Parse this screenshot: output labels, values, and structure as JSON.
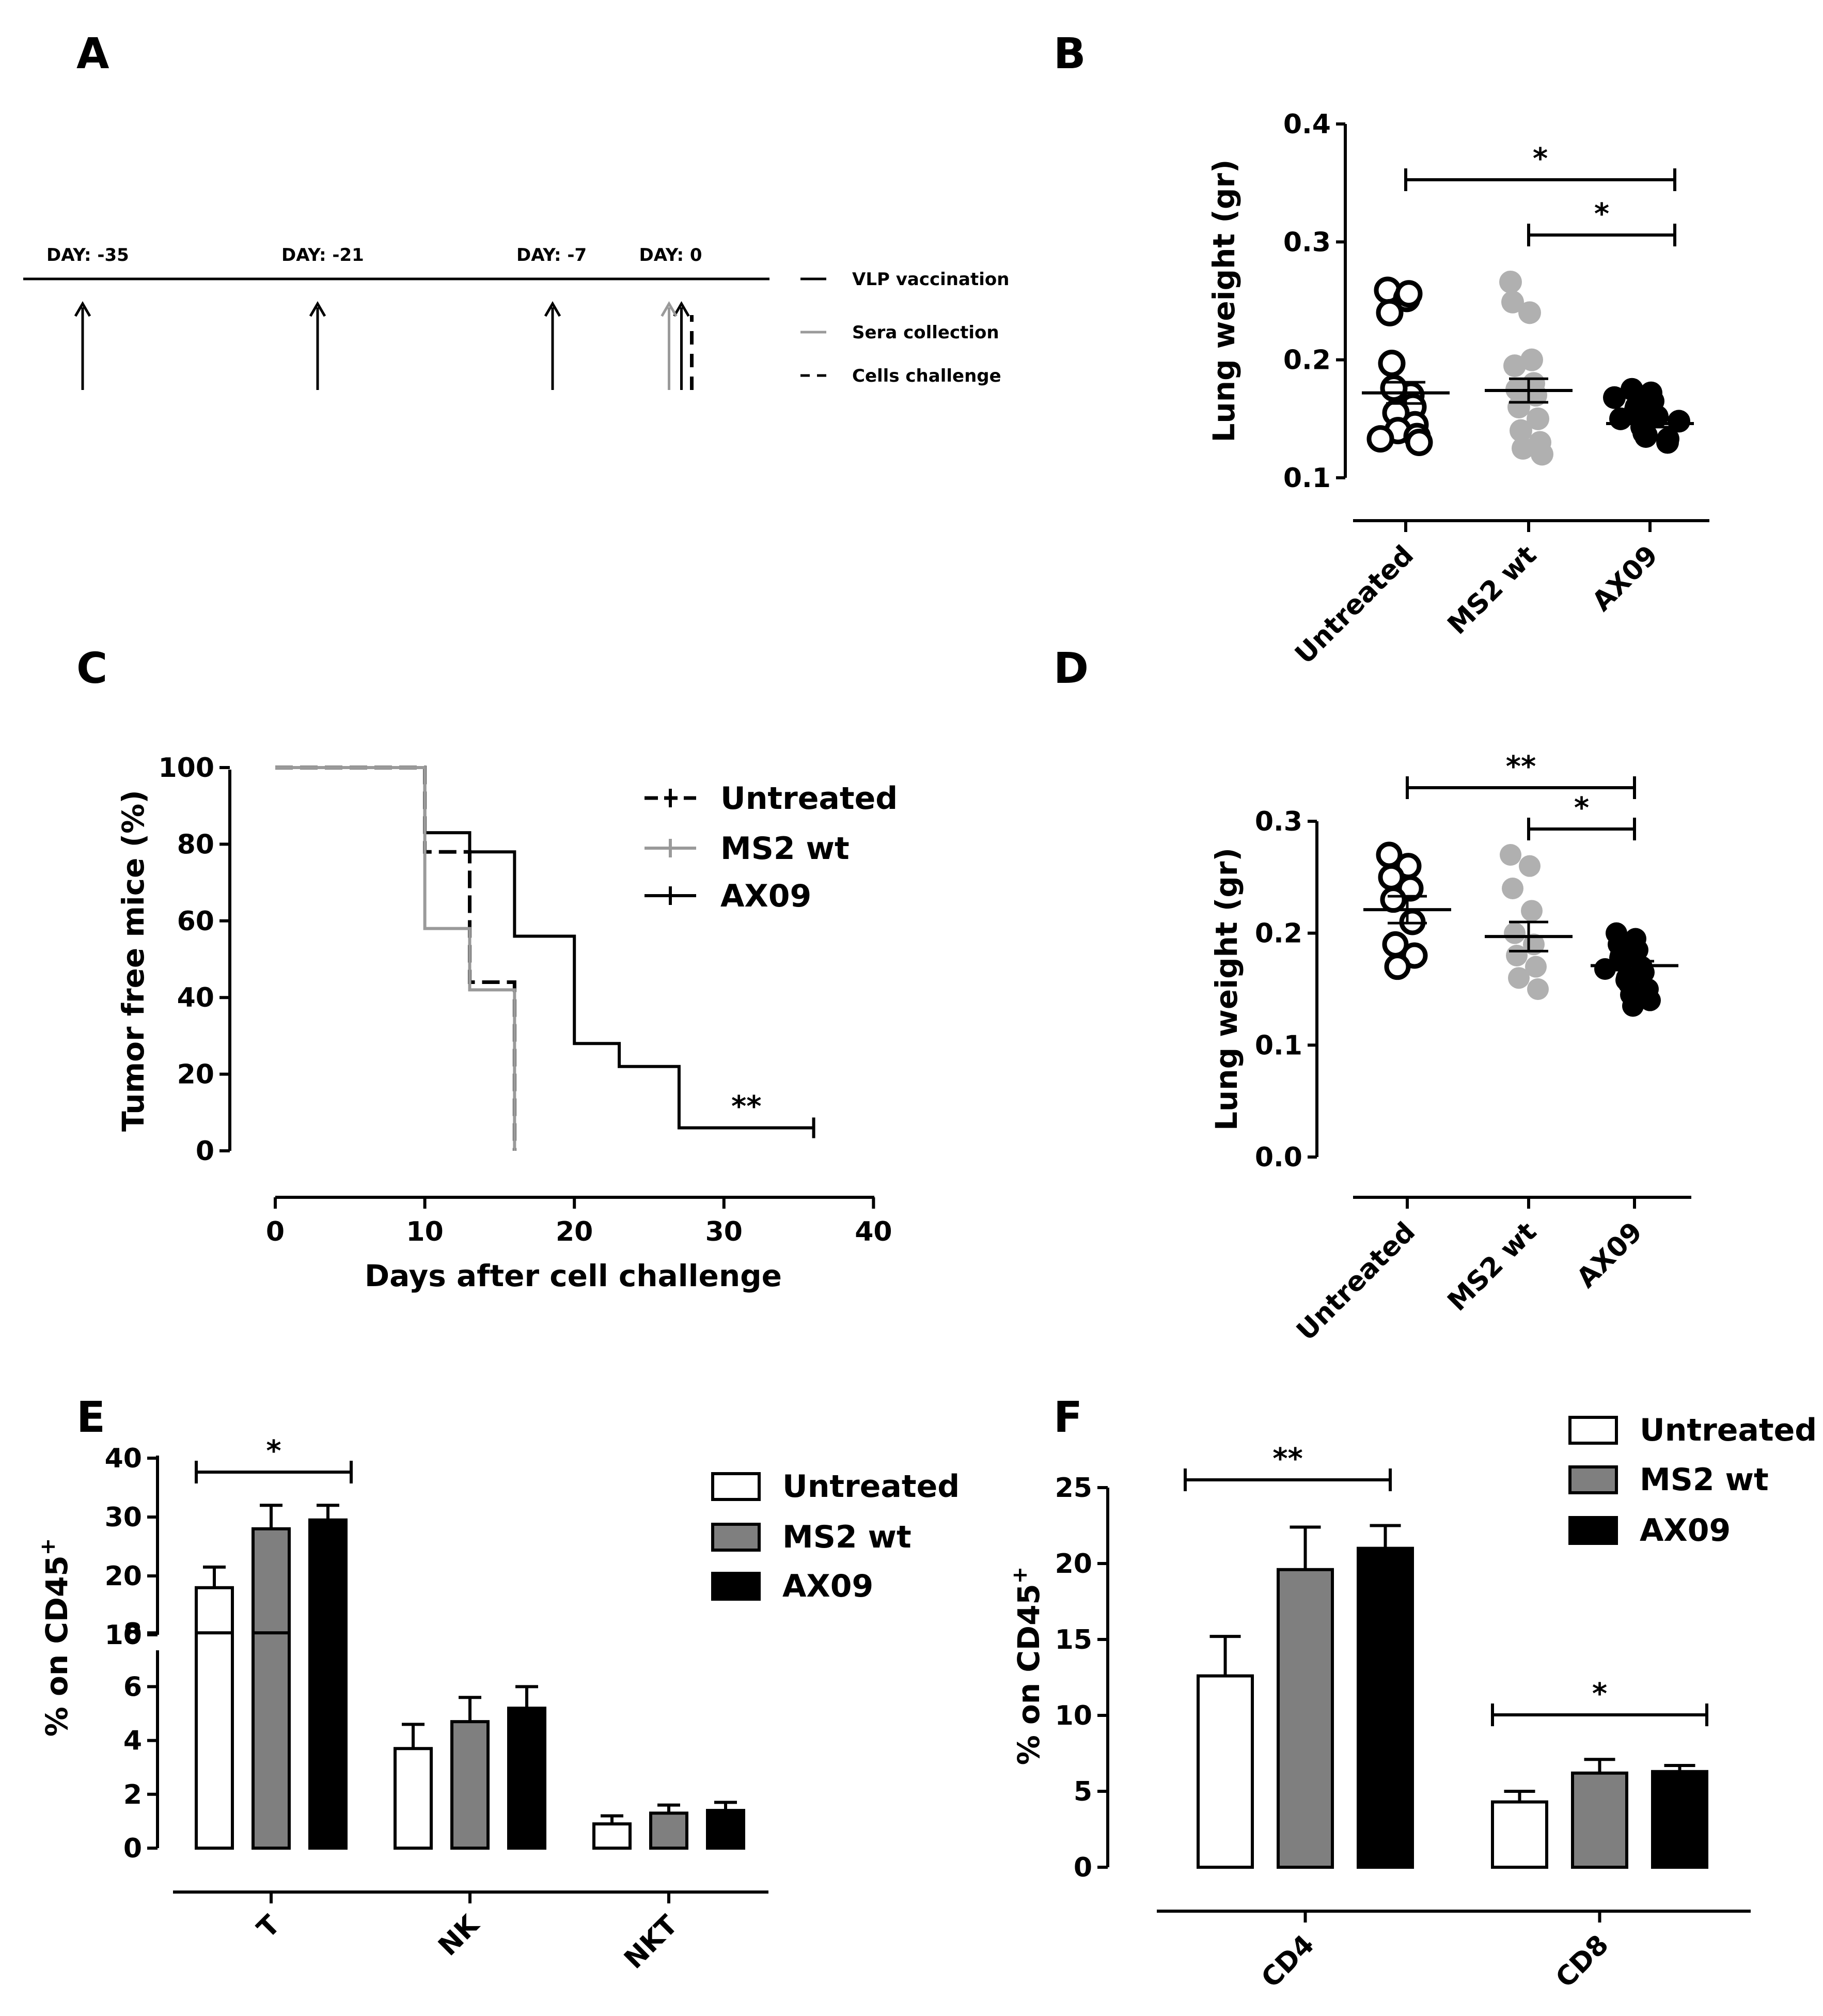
{
  "chart_data": [
    {
      "panel": "A",
      "type": "timeline",
      "day_labels": [
        "DAY: -35",
        "DAY: -21",
        "DAY: -7",
        "DAY: 0"
      ],
      "days": [
        -35,
        -21,
        -7,
        0
      ],
      "events": {
        "vaccination_days": [
          -35,
          -21,
          -7,
          0
        ],
        "sera_collection_days": [
          0
        ],
        "cells_challenge_days": [
          0
        ]
      },
      "legend": [
        "VLP vaccination",
        "Sera  collection",
        "Cells challenge"
      ]
    },
    {
      "panel": "B",
      "type": "scatter",
      "ylabel": "Lung weight (gr)",
      "ylim": [
        0.1,
        0.4
      ],
      "yticks": [
        "0.1",
        "0.2",
        "0.3",
        "0.4"
      ],
      "categories": [
        "Untreated",
        "MS2 wt",
        "AX09"
      ],
      "series": [
        {
          "name": "Untreated",
          "style": "open",
          "mean": 0.172,
          "sem": 0.009,
          "values": [
            0.259,
            0.252,
            0.24,
            0.256,
            0.197,
            0.17,
            0.176,
            0.16,
            0.155,
            0.145,
            0.14,
            0.135,
            0.133,
            0.13
          ]
        },
        {
          "name": "MS2 wt",
          "style": "grey",
          "mean": 0.174,
          "sem": 0.01,
          "values": [
            0.266,
            0.24,
            0.249,
            0.2,
            0.195,
            0.18,
            0.175,
            0.17,
            0.16,
            0.15,
            0.14,
            0.13,
            0.125,
            0.12
          ]
        },
        {
          "name": "AX09",
          "style": "black",
          "mean": 0.146,
          "sem": 0.003,
          "values": [
            0.175,
            0.172,
            0.168,
            0.165,
            0.16,
            0.158,
            0.155,
            0.152,
            0.15,
            0.148,
            0.145,
            0.143,
            0.14,
            0.138,
            0.136,
            0.135,
            0.133,
            0.13
          ]
        }
      ],
      "significance": [
        {
          "from": "Untreated",
          "to": "AX09",
          "label": "*"
        },
        {
          "from": "MS2 wt",
          "to": "AX09",
          "label": "*"
        }
      ]
    },
    {
      "panel": "C",
      "type": "line",
      "xlabel": "Days after cell challenge",
      "ylabel": "Tumor free mice (%)",
      "xlim": [
        0,
        40
      ],
      "ylim": [
        0,
        100
      ],
      "xticks": [
        "0",
        "10",
        "20",
        "30",
        "40"
      ],
      "yticks": [
        "0",
        "20",
        "40",
        "60",
        "80",
        "100"
      ],
      "series": [
        {
          "name": "Untreated",
          "style": "dash",
          "steps": [
            [
              0,
              100
            ],
            [
              10,
              100
            ],
            [
              10,
              78
            ],
            [
              13,
              78
            ],
            [
              13,
              44
            ],
            [
              16,
              44
            ],
            [
              16,
              0
            ]
          ]
        },
        {
          "name": "MS2 wt",
          "style": "grey",
          "steps": [
            [
              0,
              100
            ],
            [
              10,
              100
            ],
            [
              10,
              58
            ],
            [
              13,
              58
            ],
            [
              13,
              42
            ],
            [
              16,
              42
            ],
            [
              16,
              0
            ]
          ]
        },
        {
          "name": "AX09",
          "style": "solid",
          "steps": [
            [
              0,
              100
            ],
            [
              10,
              100
            ],
            [
              10,
              83
            ],
            [
              13,
              83
            ],
            [
              13,
              78
            ],
            [
              16,
              78
            ],
            [
              16,
              56
            ],
            [
              20,
              56
            ],
            [
              20,
              28
            ],
            [
              23,
              28
            ],
            [
              23,
              22
            ],
            [
              27,
              22
            ],
            [
              27,
              6
            ],
            [
              36,
              6
            ]
          ]
        }
      ],
      "annotation": "**"
    },
    {
      "panel": "D",
      "type": "scatter",
      "ylabel": "Lung weight (gr)",
      "ylim": [
        0.0,
        0.3
      ],
      "yticks": [
        "0.0",
        "0.1",
        "0.2",
        "0.3"
      ],
      "categories": [
        "Untreated",
        "MS2 wt",
        "AX09"
      ],
      "series": [
        {
          "name": "Untreated",
          "style": "open",
          "mean": 0.221,
          "sem": 0.012,
          "values": [
            0.27,
            0.26,
            0.25,
            0.24,
            0.23,
            0.21,
            0.19,
            0.18,
            0.17
          ]
        },
        {
          "name": "MS2 wt",
          "style": "grey",
          "mean": 0.197,
          "sem": 0.013,
          "values": [
            0.27,
            0.26,
            0.24,
            0.22,
            0.2,
            0.19,
            0.18,
            0.17,
            0.16,
            0.15
          ]
        },
        {
          "name": "AX09",
          "style": "black",
          "mean": 0.171,
          "sem": 0.004,
          "values": [
            0.2,
            0.195,
            0.19,
            0.185,
            0.18,
            0.178,
            0.175,
            0.17,
            0.168,
            0.165,
            0.16,
            0.158,
            0.155,
            0.15,
            0.145,
            0.14,
            0.135
          ]
        }
      ],
      "significance": [
        {
          "from": "Untreated",
          "to": "AX09",
          "label": "**"
        },
        {
          "from": "MS2 wt",
          "to": "AX09",
          "label": "*"
        }
      ]
    },
    {
      "panel": "E",
      "type": "bar",
      "ylabel": "% on CD45+",
      "ylabel_parts": [
        "% on CD45",
        "+"
      ],
      "axis_break": {
        "lower": [
          0,
          8
        ],
        "upper": [
          10,
          40
        ]
      },
      "yticks": [
        "0",
        "2",
        "4",
        "6",
        "8",
        "10",
        "20",
        "30",
        "40"
      ],
      "categories": [
        "T",
        "NK",
        "NKT"
      ],
      "series": [
        {
          "name": "Untreated",
          "values": [
            18.0,
            3.7,
            0.9
          ],
          "errors": [
            3.5,
            0.9,
            0.3
          ]
        },
        {
          "name": "MS2 wt",
          "values": [
            28.0,
            4.7,
            1.3
          ],
          "errors": [
            4.0,
            0.9,
            0.3
          ]
        },
        {
          "name": "AX09",
          "values": [
            29.5,
            5.2,
            1.4
          ],
          "errors": [
            2.5,
            0.8,
            0.3
          ]
        }
      ],
      "significance": [
        {
          "category": "T",
          "label": "*"
        }
      ]
    },
    {
      "panel": "F",
      "type": "bar",
      "ylabel": "% on CD45+",
      "ylabel_parts": [
        "% on CD45",
        "+"
      ],
      "ylim": [
        0,
        25
      ],
      "yticks": [
        "0",
        "5",
        "10",
        "15",
        "20",
        "25"
      ],
      "categories": [
        "CD4",
        "CD8"
      ],
      "series": [
        {
          "name": "Untreated",
          "values": [
            12.6,
            4.3
          ],
          "errors": [
            2.6,
            0.7
          ]
        },
        {
          "name": "MS2 wt",
          "values": [
            19.6,
            6.2
          ],
          "errors": [
            2.8,
            0.9
          ]
        },
        {
          "name": "AX09",
          "values": [
            21.0,
            6.3
          ],
          "errors": [
            1.5,
            0.4
          ]
        }
      ],
      "significance": [
        {
          "category": "CD4",
          "label": "**"
        },
        {
          "category": "CD8",
          "label": "*"
        }
      ]
    }
  ],
  "panel_labels": [
    "A",
    "B",
    "C",
    "D",
    "E",
    "F"
  ],
  "styles": {
    "black": "#000000",
    "grey": "#b0b0b0",
    "grey_line": "#9a9a9a",
    "bar_grey": "#7f7f7f",
    "white": "#ffffff"
  }
}
